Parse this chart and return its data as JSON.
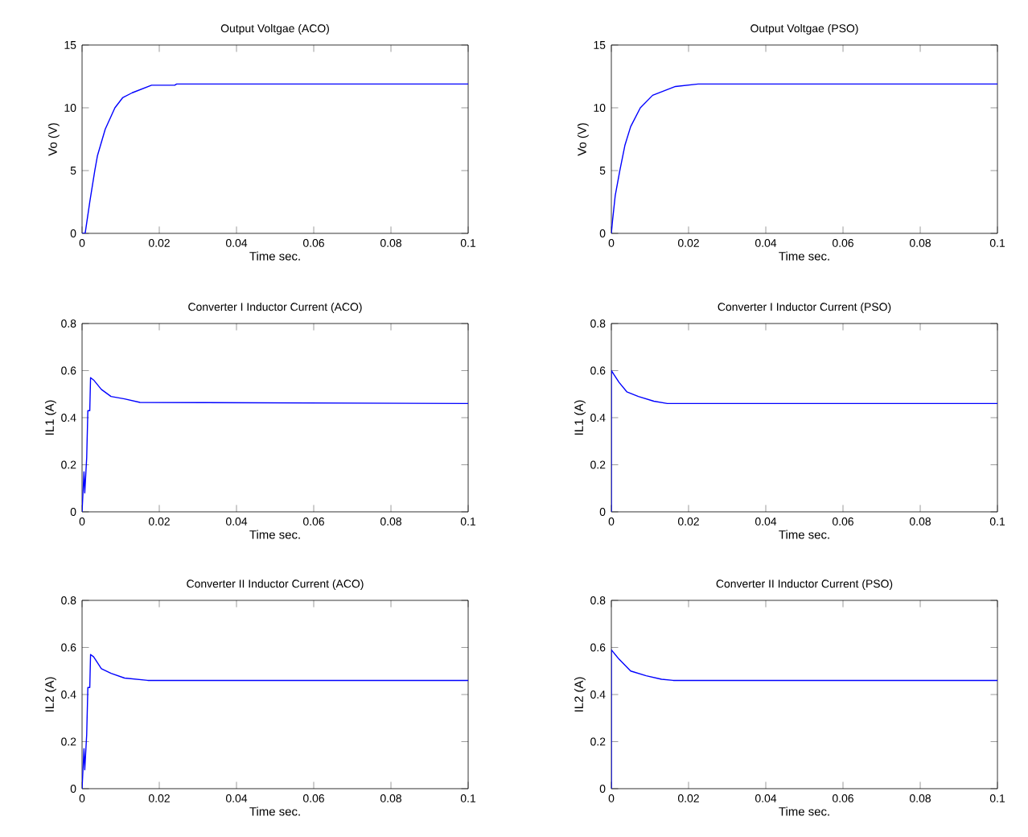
{
  "chart_data": [
    {
      "type": "line",
      "title": "Output Voltgae (ACO)",
      "xlabel": "Time  sec.",
      "ylabel": "Vo (V)",
      "xlim": [
        0,
        0.1
      ],
      "ylim": [
        0,
        15
      ],
      "xticks": [
        0,
        0.02,
        0.04,
        0.06,
        0.08,
        0.1
      ],
      "yticks": [
        0,
        5,
        10,
        15
      ],
      "grid": false,
      "series": [
        {
          "color": "#0000ff",
          "x": [
            0,
            0.0008,
            0.002,
            0.0033,
            0.004,
            0.006,
            0.0085,
            0.0105,
            0.013,
            0.018,
            0.024,
            0.0245,
            0.1
          ],
          "values": [
            0,
            0,
            2.5,
            5,
            6.2,
            8.3,
            10,
            10.8,
            11.2,
            11.8,
            11.8,
            11.9,
            11.9
          ]
        }
      ]
    },
    {
      "type": "line",
      "title": "Output Voltgae (PSO)",
      "xlabel": "Time  sec.",
      "ylabel": "Vo (V)",
      "xlim": [
        0,
        0.1
      ],
      "ylim": [
        0,
        15
      ],
      "xticks": [
        0,
        0.02,
        0.04,
        0.06,
        0.08,
        0.1
      ],
      "yticks": [
        0,
        5,
        10,
        15
      ],
      "grid": false,
      "series": [
        {
          "color": "#0000ff",
          "x": [
            0,
            0.0003,
            0.001,
            0.0022,
            0.0035,
            0.005,
            0.0075,
            0.0107,
            0.0166,
            0.0225,
            0.1
          ],
          "values": [
            0,
            1,
            3,
            5,
            7,
            8.5,
            10,
            11,
            11.7,
            11.9,
            11.9
          ]
        }
      ]
    },
    {
      "type": "line",
      "title": "Converter I Inductor Current (ACO)",
      "xlabel": "Time  sec.",
      "ylabel": "IL1 (A)",
      "xlim": [
        0,
        0.1
      ],
      "ylim": [
        0,
        0.8
      ],
      "xticks": [
        0,
        0.02,
        0.04,
        0.06,
        0.08,
        0.1
      ],
      "yticks": [
        0,
        0.2,
        0.4,
        0.6,
        0.8
      ],
      "grid": false,
      "series": [
        {
          "color": "#0000ff",
          "x": [
            0,
            0.0005,
            0.0007,
            0.0012,
            0.0015,
            0.002,
            0.0022,
            0.003,
            0.005,
            0.0075,
            0.011,
            0.015,
            0.1
          ],
          "values": [
            0,
            0.17,
            0.08,
            0.23,
            0.43,
            0.43,
            0.57,
            0.56,
            0.52,
            0.49,
            0.48,
            0.465,
            0.46
          ]
        }
      ]
    },
    {
      "type": "line",
      "title": "Converter I Inductor Current (PSO)",
      "xlabel": "Time  sec.",
      "ylabel": "IL1 (A)",
      "xlim": [
        0,
        0.1
      ],
      "ylim": [
        0,
        0.8
      ],
      "xticks": [
        0,
        0.02,
        0.04,
        0.06,
        0.08,
        0.1
      ],
      "yticks": [
        0,
        0.2,
        0.4,
        0.6,
        0.8
      ],
      "grid": false,
      "series": [
        {
          "color": "#0000ff",
          "x": [
            0,
            0,
            0.002,
            0.004,
            0.007,
            0.011,
            0.0145,
            0.1
          ],
          "values": [
            0,
            0.6,
            0.55,
            0.51,
            0.49,
            0.47,
            0.46,
            0.46
          ]
        }
      ]
    },
    {
      "type": "line",
      "title": "Converter II Inductor Current (ACO)",
      "xlabel": "Time  sec.",
      "ylabel": "IL2 (A)",
      "xlim": [
        0,
        0.1
      ],
      "ylim": [
        0,
        0.8
      ],
      "xticks": [
        0,
        0.02,
        0.04,
        0.06,
        0.08,
        0.1
      ],
      "yticks": [
        0,
        0.2,
        0.4,
        0.6,
        0.8
      ],
      "grid": false,
      "series": [
        {
          "color": "#0000ff",
          "x": [
            0,
            0.0005,
            0.0007,
            0.0012,
            0.0015,
            0.002,
            0.0022,
            0.003,
            0.005,
            0.0075,
            0.011,
            0.017,
            0.1
          ],
          "values": [
            0,
            0.17,
            0.08,
            0.23,
            0.43,
            0.43,
            0.57,
            0.56,
            0.51,
            0.49,
            0.47,
            0.46,
            0.46
          ]
        }
      ]
    },
    {
      "type": "line",
      "title": "Converter II Inductor Current (PSO)",
      "xlabel": "Time  sec.",
      "ylabel": "IL2 (A)",
      "xlim": [
        0,
        0.1
      ],
      "ylim": [
        0,
        0.8
      ],
      "xticks": [
        0,
        0.02,
        0.04,
        0.06,
        0.08,
        0.1
      ],
      "yticks": [
        0,
        0.2,
        0.4,
        0.6,
        0.8
      ],
      "grid": false,
      "series": [
        {
          "color": "#0000ff",
          "x": [
            0,
            0,
            0.002,
            0.005,
            0.009,
            0.013,
            0.016,
            0.1
          ],
          "values": [
            0,
            0.59,
            0.55,
            0.5,
            0.48,
            0.465,
            0.46,
            0.46
          ]
        }
      ]
    }
  ]
}
